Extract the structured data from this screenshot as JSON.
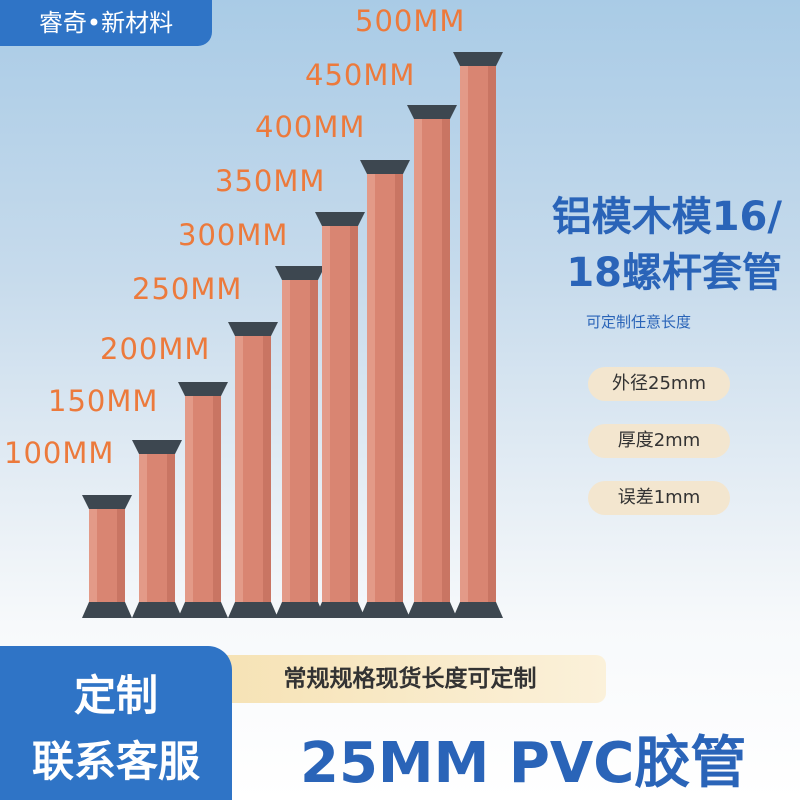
{
  "brand": "睿奇•新材料",
  "lengths": [
    "500MM",
    "450MM",
    "400MM",
    "350MM",
    "300MM",
    "250MM",
    "200MM",
    "150MM",
    "100MM"
  ],
  "headline": [
    "铝模木模16/",
    "18螺杆套管"
  ],
  "subtitle": "可定制任意长度",
  "specs": [
    "外径25mm",
    "厚度2mm",
    "误差1mm"
  ],
  "banner": "常规规格现货长度可定制",
  "contact": [
    "定制",
    "联系客服"
  ],
  "product_title": "25MM PVC胶管"
}
